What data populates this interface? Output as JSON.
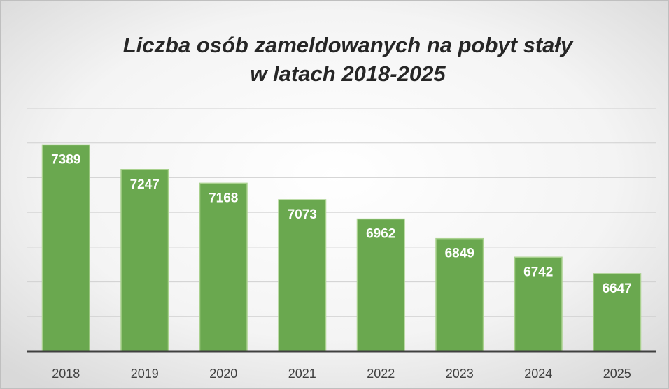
{
  "chart_data": {
    "type": "bar",
    "title": [
      "Liczba osób zameldowanych na pobyt stały",
      "w latach 2018-2025"
    ],
    "categories": [
      "2018",
      "2019",
      "2020",
      "2021",
      "2022",
      "2023",
      "2024",
      "2025"
    ],
    "values": [
      7389,
      7247,
      7168,
      7073,
      6962,
      6849,
      6742,
      6647
    ],
    "color": "#6aa84f",
    "ylim": [
      6200,
      7600
    ],
    "yticks": [
      6200,
      6400,
      6600,
      6800,
      7000,
      7200,
      7400,
      7600
    ],
    "grid": true
  }
}
